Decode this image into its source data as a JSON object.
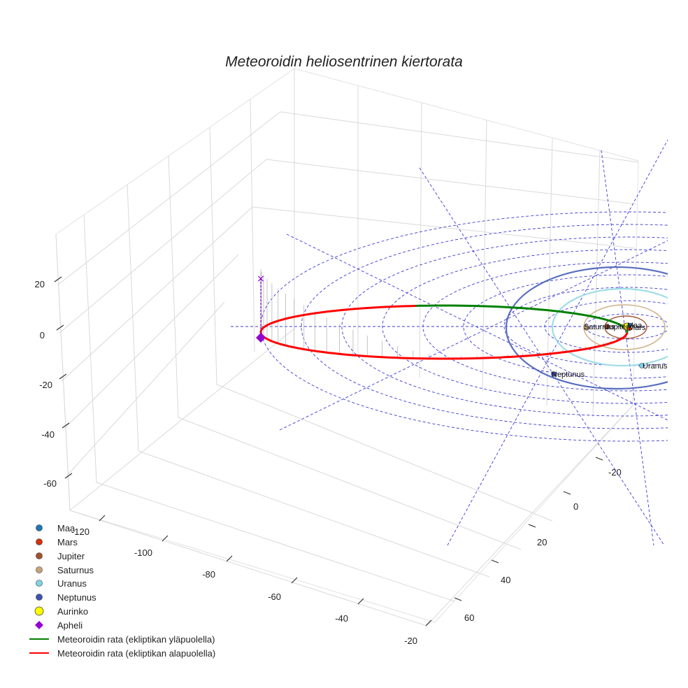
{
  "chart_data": {
    "type": "line3d",
    "title": "Meteoroidin heliosentrinen kiertorata",
    "axes": {
      "x": {
        "ticks": [
          -120,
          -100,
          -80,
          -60,
          -40,
          -20
        ]
      },
      "y": {
        "ticks": [
          -20,
          0,
          20,
          40,
          60
        ]
      },
      "z": {
        "ticks": [
          20,
          0,
          -20,
          -40,
          -60
        ]
      }
    },
    "grid": true,
    "legend_position": "bottom-left",
    "legend": [
      {
        "label": "Maa",
        "marker": "circle",
        "color": "#1f77b4"
      },
      {
        "label": "Mars",
        "marker": "circle",
        "color": "#d62f0e"
      },
      {
        "label": "Jupiter",
        "marker": "circle",
        "color": "#a0522d"
      },
      {
        "label": "Saturnus",
        "marker": "circle",
        "color": "#c8a27a"
      },
      {
        "label": "Uranus",
        "marker": "circle",
        "color": "#7fd3e6"
      },
      {
        "label": "Neptunus",
        "marker": "circle",
        "color": "#3f51b5"
      },
      {
        "label": "Aurinko",
        "marker": "circle-large",
        "color": "#ffff00"
      },
      {
        "label": "Apheli",
        "marker": "diamond",
        "color": "#9400d3"
      },
      {
        "label": "Meteoroidin rata (ekliptikan yläpuolella)",
        "marker": "line",
        "color": "#008000"
      },
      {
        "label": "Meteoroidin rata (ekliptikan alapuolella)",
        "marker": "line",
        "color": "#ff0000"
      }
    ],
    "planet_labels": [
      "Saturnus",
      "Jupiter",
      "Maa",
      "Mars",
      "Uranus",
      "Neptunus"
    ],
    "orbit_colors": {
      "neptune": "#5a6fbf",
      "uranus": "#9fdde8",
      "saturn": "#d2b48c",
      "jupiter": "#a0522d",
      "guide": "#3b3bd6",
      "above": "#008000",
      "below": "#ff0000",
      "aphelion": "#9400d3"
    }
  }
}
